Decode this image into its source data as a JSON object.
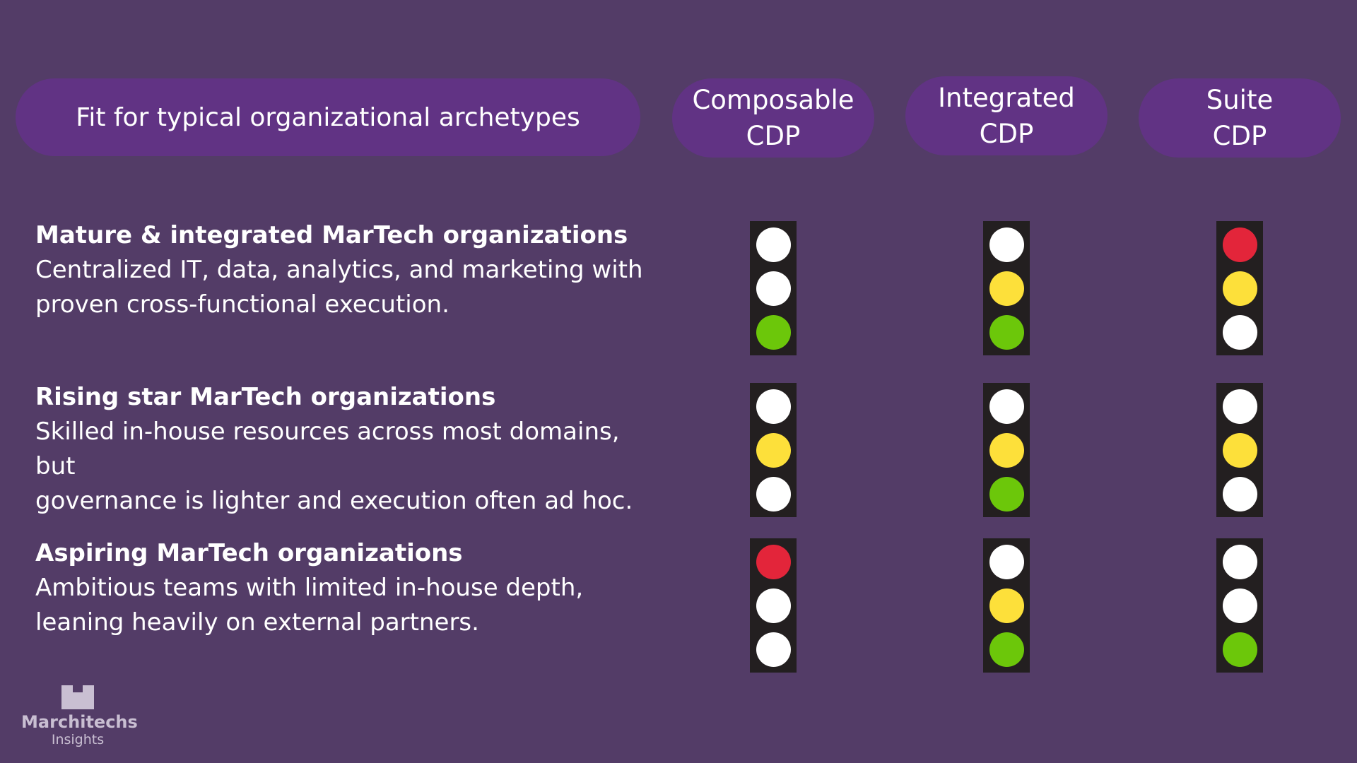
{
  "header": {
    "title": "Fit for typical organizational archetypes",
    "columns": [
      {
        "line1": "Composable",
        "line2": "CDP"
      },
      {
        "line1": "Integrated",
        "line2": "CDP"
      },
      {
        "line1": "Suite",
        "line2": "CDP"
      }
    ]
  },
  "rows": [
    {
      "title": "Mature & integrated MarTech organizations",
      "description": "Centralized IT, data, analytics, and marketing with\nproven cross-functional execution.",
      "lights": [
        [
          "off",
          "off",
          "green"
        ],
        [
          "off",
          "yellow",
          "green"
        ],
        [
          "red",
          "yellow",
          "off"
        ]
      ]
    },
    {
      "title": "Rising star MarTech organizations",
      "description": "Skilled in-house resources across most domains, but\ngovernance is lighter and execution often ad hoc.",
      "lights": [
        [
          "off",
          "yellow",
          "off"
        ],
        [
          "off",
          "yellow",
          "green"
        ],
        [
          "off",
          "yellow",
          "off"
        ]
      ]
    },
    {
      "title": "Aspiring MarTech organizations",
      "description": "Ambitious teams with limited in-house depth,\nleaning heavily on external partners.",
      "lights": [
        [
          "red",
          "off",
          "off"
        ],
        [
          "off",
          "yellow",
          "green"
        ],
        [
          "off",
          "off",
          "green"
        ]
      ]
    }
  ],
  "colors": {
    "background": "#533c67",
    "pill": "#613384",
    "housing": "#231f20",
    "off": "#ffffff",
    "red": "#e3253a",
    "yellow": "#fde03a",
    "green": "#6cc70a"
  },
  "logo": {
    "name": "Marchitechs",
    "sub": "Insights"
  }
}
